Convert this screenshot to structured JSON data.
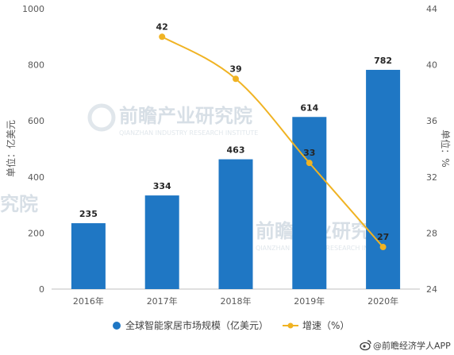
{
  "chart_data": {
    "type": "bar+line",
    "categories": [
      "2016年",
      "2017年",
      "2018年",
      "2019年",
      "2020年"
    ],
    "series": [
      {
        "name": "全球智能家居市场规模（亿美元）",
        "type": "bar",
        "axis": "left",
        "color": "#1f77c4",
        "values": [
          235,
          334,
          463,
          614,
          782
        ],
        "labels": [
          "235",
          "334",
          "463",
          "614",
          "782"
        ]
      },
      {
        "name": "增速（%）",
        "type": "line",
        "axis": "right",
        "color": "#f0b323",
        "values": [
          null,
          42,
          39,
          33,
          27
        ],
        "labels": [
          "",
          "42",
          "39",
          "33",
          "27"
        ]
      }
    ],
    "y_left": {
      "label": "单位：亿美元",
      "lim": [
        0,
        1000
      ],
      "ticks": [
        "0",
        "200",
        "400",
        "600",
        "800",
        "1000"
      ]
    },
    "y_right": {
      "label": "单位：%",
      "lim": [
        24,
        44
      ],
      "ticks": [
        "24",
        "28",
        "32",
        "36",
        "40",
        "44"
      ]
    },
    "grid": false,
    "legend_position": "bottom"
  },
  "watermark": {
    "brand": "前瞻产业研究院",
    "sub": "QIANZHAN INDUSTRY RESEARCH INSTITUTE"
  },
  "source": {
    "icon": "weibo-icon",
    "text": "@前瞻经济学人APP"
  }
}
